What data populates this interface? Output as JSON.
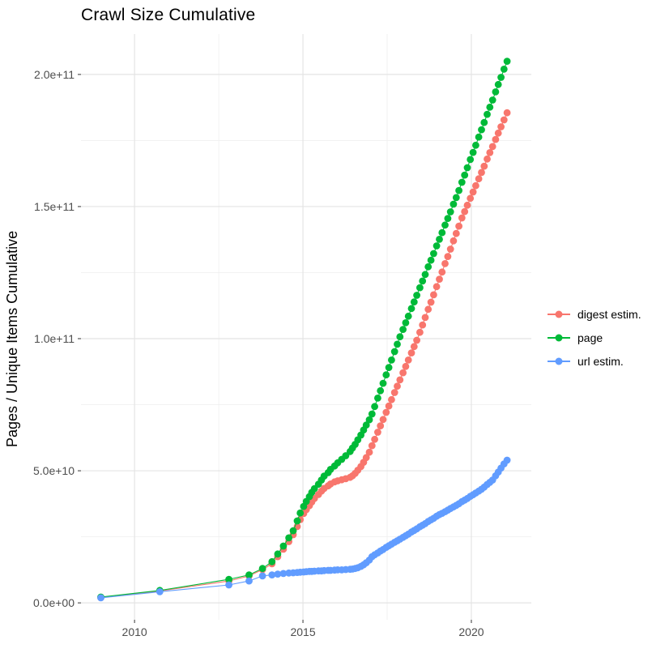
{
  "chart_data": {
    "type": "line",
    "title": "Crawl Size Cumulative",
    "xlabel": "",
    "ylabel": "Pages / Unique Items Cumulative",
    "grid": true,
    "legend_position": "right",
    "value_unit": "items, values stored in units of 1e9 (billions)",
    "x_axis": {
      "range": [
        2008.41,
        2021.78
      ],
      "ticks": [
        {
          "value": 2010,
          "label": "2010"
        },
        {
          "value": 2015,
          "label": "2015"
        },
        {
          "value": 2020,
          "label": "2020"
        }
      ],
      "minor_ticks": [
        2012.5,
        2017.5
      ]
    },
    "y_axis": {
      "range": [
        -6.4,
        215.3
      ],
      "ticks": [
        {
          "value": 0,
          "label": "0.0e+00"
        },
        {
          "value": 50,
          "label": "5.0e+10"
        },
        {
          "value": 100,
          "label": "1.0e+11"
        },
        {
          "value": 150,
          "label": "1.5e+11"
        },
        {
          "value": 200,
          "label": "2.0e+11"
        }
      ],
      "minor_ticks": [
        25,
        75,
        125,
        175
      ]
    },
    "series": [
      {
        "name": "digest estim.",
        "color": "#F8766D",
        "points": [
          [
            2009.0,
            2.0
          ],
          [
            2010.75,
            4.5
          ],
          [
            2012.8,
            8.3
          ],
          [
            2013.4,
            10.2
          ],
          [
            2013.8,
            12.6
          ],
          [
            2014.08,
            14.8
          ],
          [
            2014.25,
            17.5
          ],
          [
            2014.42,
            20.3
          ],
          [
            2014.58,
            23.2
          ],
          [
            2014.71,
            25.8
          ],
          [
            2014.83,
            28.9
          ],
          [
            2014.92,
            31.5
          ],
          [
            2015.02,
            33.8
          ],
          [
            2015.1,
            35.3
          ],
          [
            2015.19,
            36.8
          ],
          [
            2015.26,
            38.2
          ],
          [
            2015.34,
            39.5
          ],
          [
            2015.46,
            41.0
          ],
          [
            2015.55,
            42.3
          ],
          [
            2015.63,
            43.3
          ],
          [
            2015.75,
            44.3
          ],
          [
            2015.82,
            45.0
          ],
          [
            2015.94,
            45.8
          ],
          [
            2016.03,
            46.2
          ],
          [
            2016.15,
            46.6
          ],
          [
            2016.27,
            47.0
          ],
          [
            2016.4,
            47.5
          ],
          [
            2016.47,
            48.1
          ],
          [
            2016.55,
            49.0
          ],
          [
            2016.63,
            50.2
          ],
          [
            2016.72,
            51.6
          ],
          [
            2016.8,
            53.2
          ],
          [
            2016.88,
            55.0
          ],
          [
            2016.97,
            57.0
          ],
          [
            2017.05,
            59.5
          ],
          [
            2017.13,
            61.9
          ],
          [
            2017.22,
            64.6
          ],
          [
            2017.3,
            67.0
          ],
          [
            2017.38,
            69.4
          ],
          [
            2017.47,
            72.1
          ],
          [
            2017.55,
            74.5
          ],
          [
            2017.63,
            76.9
          ],
          [
            2017.72,
            79.6
          ],
          [
            2017.8,
            82.0
          ],
          [
            2017.88,
            84.4
          ],
          [
            2017.97,
            87.1
          ],
          [
            2018.05,
            89.5
          ],
          [
            2018.13,
            91.9
          ],
          [
            2018.22,
            94.6
          ],
          [
            2018.3,
            97.0
          ],
          [
            2018.38,
            99.4
          ],
          [
            2018.47,
            102.4
          ],
          [
            2018.55,
            105.2
          ],
          [
            2018.63,
            108.0
          ],
          [
            2018.72,
            111.1
          ],
          [
            2018.8,
            113.8
          ],
          [
            2018.88,
            116.6
          ],
          [
            2018.97,
            119.7
          ],
          [
            2019.05,
            122.5
          ],
          [
            2019.13,
            125.2
          ],
          [
            2019.22,
            128.4
          ],
          [
            2019.3,
            131.1
          ],
          [
            2019.38,
            133.9
          ],
          [
            2019.47,
            137.0
          ],
          [
            2019.55,
            139.8
          ],
          [
            2019.63,
            142.6
          ],
          [
            2019.72,
            145.7
          ],
          [
            2019.8,
            148.1
          ],
          [
            2019.88,
            150.5
          ],
          [
            2019.97,
            153.1
          ],
          [
            2020.05,
            155.5
          ],
          [
            2020.13,
            157.9
          ],
          [
            2020.22,
            160.5
          ],
          [
            2020.3,
            162.9
          ],
          [
            2020.38,
            165.3
          ],
          [
            2020.47,
            168.0
          ],
          [
            2020.55,
            170.4
          ],
          [
            2020.63,
            172.7
          ],
          [
            2020.72,
            175.4
          ],
          [
            2020.8,
            177.8
          ],
          [
            2020.88,
            180.2
          ],
          [
            2020.97,
            182.8
          ],
          [
            2021.06,
            185.5
          ]
        ]
      },
      {
        "name": "page",
        "color": "#00BA38",
        "points": [
          [
            2009.0,
            2.2
          ],
          [
            2010.75,
            4.7
          ],
          [
            2012.8,
            8.9
          ],
          [
            2013.4,
            10.6
          ],
          [
            2013.8,
            13.0
          ],
          [
            2014.08,
            15.6
          ],
          [
            2014.25,
            18.5
          ],
          [
            2014.42,
            21.5
          ],
          [
            2014.58,
            24.6
          ],
          [
            2014.71,
            27.3
          ],
          [
            2014.83,
            31.0
          ],
          [
            2014.92,
            34.0
          ],
          [
            2015.02,
            36.5
          ],
          [
            2015.1,
            38.4
          ],
          [
            2015.19,
            40.2
          ],
          [
            2015.26,
            41.8
          ],
          [
            2015.34,
            43.2
          ],
          [
            2015.46,
            44.9
          ],
          [
            2015.55,
            46.5
          ],
          [
            2015.63,
            48.0
          ],
          [
            2015.75,
            49.3
          ],
          [
            2015.82,
            50.5
          ],
          [
            2015.94,
            51.8
          ],
          [
            2016.03,
            53.0
          ],
          [
            2016.15,
            54.3
          ],
          [
            2016.27,
            55.7
          ],
          [
            2016.4,
            57.3
          ],
          [
            2016.47,
            58.6
          ],
          [
            2016.55,
            60.0
          ],
          [
            2016.63,
            61.7
          ],
          [
            2016.72,
            63.5
          ],
          [
            2016.8,
            65.4
          ],
          [
            2016.88,
            67.3
          ],
          [
            2016.97,
            69.3
          ],
          [
            2017.05,
            71.5
          ],
          [
            2017.13,
            74.3
          ],
          [
            2017.22,
            77.5
          ],
          [
            2017.3,
            80.3
          ],
          [
            2017.38,
            83.1
          ],
          [
            2017.47,
            86.3
          ],
          [
            2017.55,
            89.1
          ],
          [
            2017.63,
            91.9
          ],
          [
            2017.72,
            95.1
          ],
          [
            2017.8,
            97.9
          ],
          [
            2017.88,
            100.7
          ],
          [
            2017.97,
            103.5
          ],
          [
            2018.05,
            106.0
          ],
          [
            2018.13,
            108.5
          ],
          [
            2018.22,
            111.4
          ],
          [
            2018.3,
            113.9
          ],
          [
            2018.38,
            116.4
          ],
          [
            2018.47,
            119.3
          ],
          [
            2018.55,
            121.8
          ],
          [
            2018.63,
            124.3
          ],
          [
            2018.72,
            127.2
          ],
          [
            2018.8,
            129.7
          ],
          [
            2018.88,
            132.2
          ],
          [
            2018.97,
            135.1
          ],
          [
            2019.05,
            137.6
          ],
          [
            2019.13,
            140.1
          ],
          [
            2019.22,
            143.0
          ],
          [
            2019.3,
            145.5
          ],
          [
            2019.38,
            148.0
          ],
          [
            2019.47,
            150.9
          ],
          [
            2019.55,
            153.4
          ],
          [
            2019.63,
            156.1
          ],
          [
            2019.72,
            159.2
          ],
          [
            2019.8,
            161.9
          ],
          [
            2019.88,
            164.7
          ],
          [
            2019.97,
            167.8
          ],
          [
            2020.05,
            170.5
          ],
          [
            2020.13,
            173.2
          ],
          [
            2020.22,
            176.3
          ],
          [
            2020.3,
            179.1
          ],
          [
            2020.38,
            181.8
          ],
          [
            2020.47,
            184.9
          ],
          [
            2020.55,
            187.6
          ],
          [
            2020.63,
            190.3
          ],
          [
            2020.72,
            193.4
          ],
          [
            2020.8,
            196.2
          ],
          [
            2020.88,
            198.9
          ],
          [
            2020.97,
            202.0
          ],
          [
            2021.06,
            205.0
          ]
        ]
      },
      {
        "name": "url estim.",
        "color": "#619CFF",
        "points": [
          [
            2009.0,
            1.9
          ],
          [
            2010.75,
            4.2
          ],
          [
            2012.8,
            6.8
          ],
          [
            2013.4,
            8.3
          ],
          [
            2013.8,
            10.2
          ],
          [
            2014.08,
            10.6
          ],
          [
            2014.25,
            10.9
          ],
          [
            2014.42,
            11.1
          ],
          [
            2014.58,
            11.3
          ],
          [
            2014.71,
            11.4
          ],
          [
            2014.83,
            11.5
          ],
          [
            2014.92,
            11.6
          ],
          [
            2015.02,
            11.7
          ],
          [
            2015.1,
            11.8
          ],
          [
            2015.19,
            11.9
          ],
          [
            2015.26,
            11.9
          ],
          [
            2015.34,
            12.0
          ],
          [
            2015.46,
            12.1
          ],
          [
            2015.55,
            12.1
          ],
          [
            2015.63,
            12.2
          ],
          [
            2015.75,
            12.3
          ],
          [
            2015.82,
            12.3
          ],
          [
            2015.94,
            12.4
          ],
          [
            2016.03,
            12.5
          ],
          [
            2016.15,
            12.5
          ],
          [
            2016.27,
            12.6
          ],
          [
            2016.4,
            12.7
          ],
          [
            2016.47,
            12.8
          ],
          [
            2016.55,
            13.0
          ],
          [
            2016.63,
            13.3
          ],
          [
            2016.72,
            13.8
          ],
          [
            2016.8,
            14.4
          ],
          [
            2016.88,
            15.2
          ],
          [
            2016.97,
            16.2
          ],
          [
            2017.05,
            17.5
          ],
          [
            2017.13,
            18.2
          ],
          [
            2017.22,
            18.9
          ],
          [
            2017.3,
            19.6
          ],
          [
            2017.38,
            20.2
          ],
          [
            2017.47,
            21.0
          ],
          [
            2017.55,
            21.6
          ],
          [
            2017.63,
            22.2
          ],
          [
            2017.72,
            22.9
          ],
          [
            2017.8,
            23.5
          ],
          [
            2017.88,
            24.1
          ],
          [
            2017.97,
            24.8
          ],
          [
            2018.05,
            25.4
          ],
          [
            2018.13,
            26.0
          ],
          [
            2018.22,
            26.8
          ],
          [
            2018.3,
            27.4
          ],
          [
            2018.38,
            28.0
          ],
          [
            2018.47,
            28.8
          ],
          [
            2018.55,
            29.4
          ],
          [
            2018.63,
            30.0
          ],
          [
            2018.72,
            30.8
          ],
          [
            2018.8,
            31.4
          ],
          [
            2018.88,
            32.0
          ],
          [
            2018.97,
            32.8
          ],
          [
            2019.05,
            33.4
          ],
          [
            2019.13,
            33.9
          ],
          [
            2019.22,
            34.5
          ],
          [
            2019.3,
            35.1
          ],
          [
            2019.38,
            35.7
          ],
          [
            2019.47,
            36.3
          ],
          [
            2019.55,
            36.9
          ],
          [
            2019.63,
            37.5
          ],
          [
            2019.72,
            38.3
          ],
          [
            2019.8,
            38.9
          ],
          [
            2019.88,
            39.5
          ],
          [
            2019.97,
            40.3
          ],
          [
            2020.05,
            40.9
          ],
          [
            2020.13,
            41.6
          ],
          [
            2020.22,
            42.3
          ],
          [
            2020.3,
            43.0
          ],
          [
            2020.38,
            43.8
          ],
          [
            2020.47,
            44.8
          ],
          [
            2020.55,
            45.6
          ],
          [
            2020.63,
            46.5
          ],
          [
            2020.72,
            48.1
          ],
          [
            2020.8,
            49.5
          ],
          [
            2020.88,
            51.0
          ],
          [
            2020.97,
            52.6
          ],
          [
            2021.06,
            54.0
          ]
        ]
      }
    ],
    "colors": {
      "background": "#ffffff",
      "grid_major": "#e4e4e4",
      "grid_minor": "#f0f0f0",
      "tick_mark": "#333333",
      "axis_text": "#4d4d4d",
      "title_text": "#000000"
    }
  }
}
